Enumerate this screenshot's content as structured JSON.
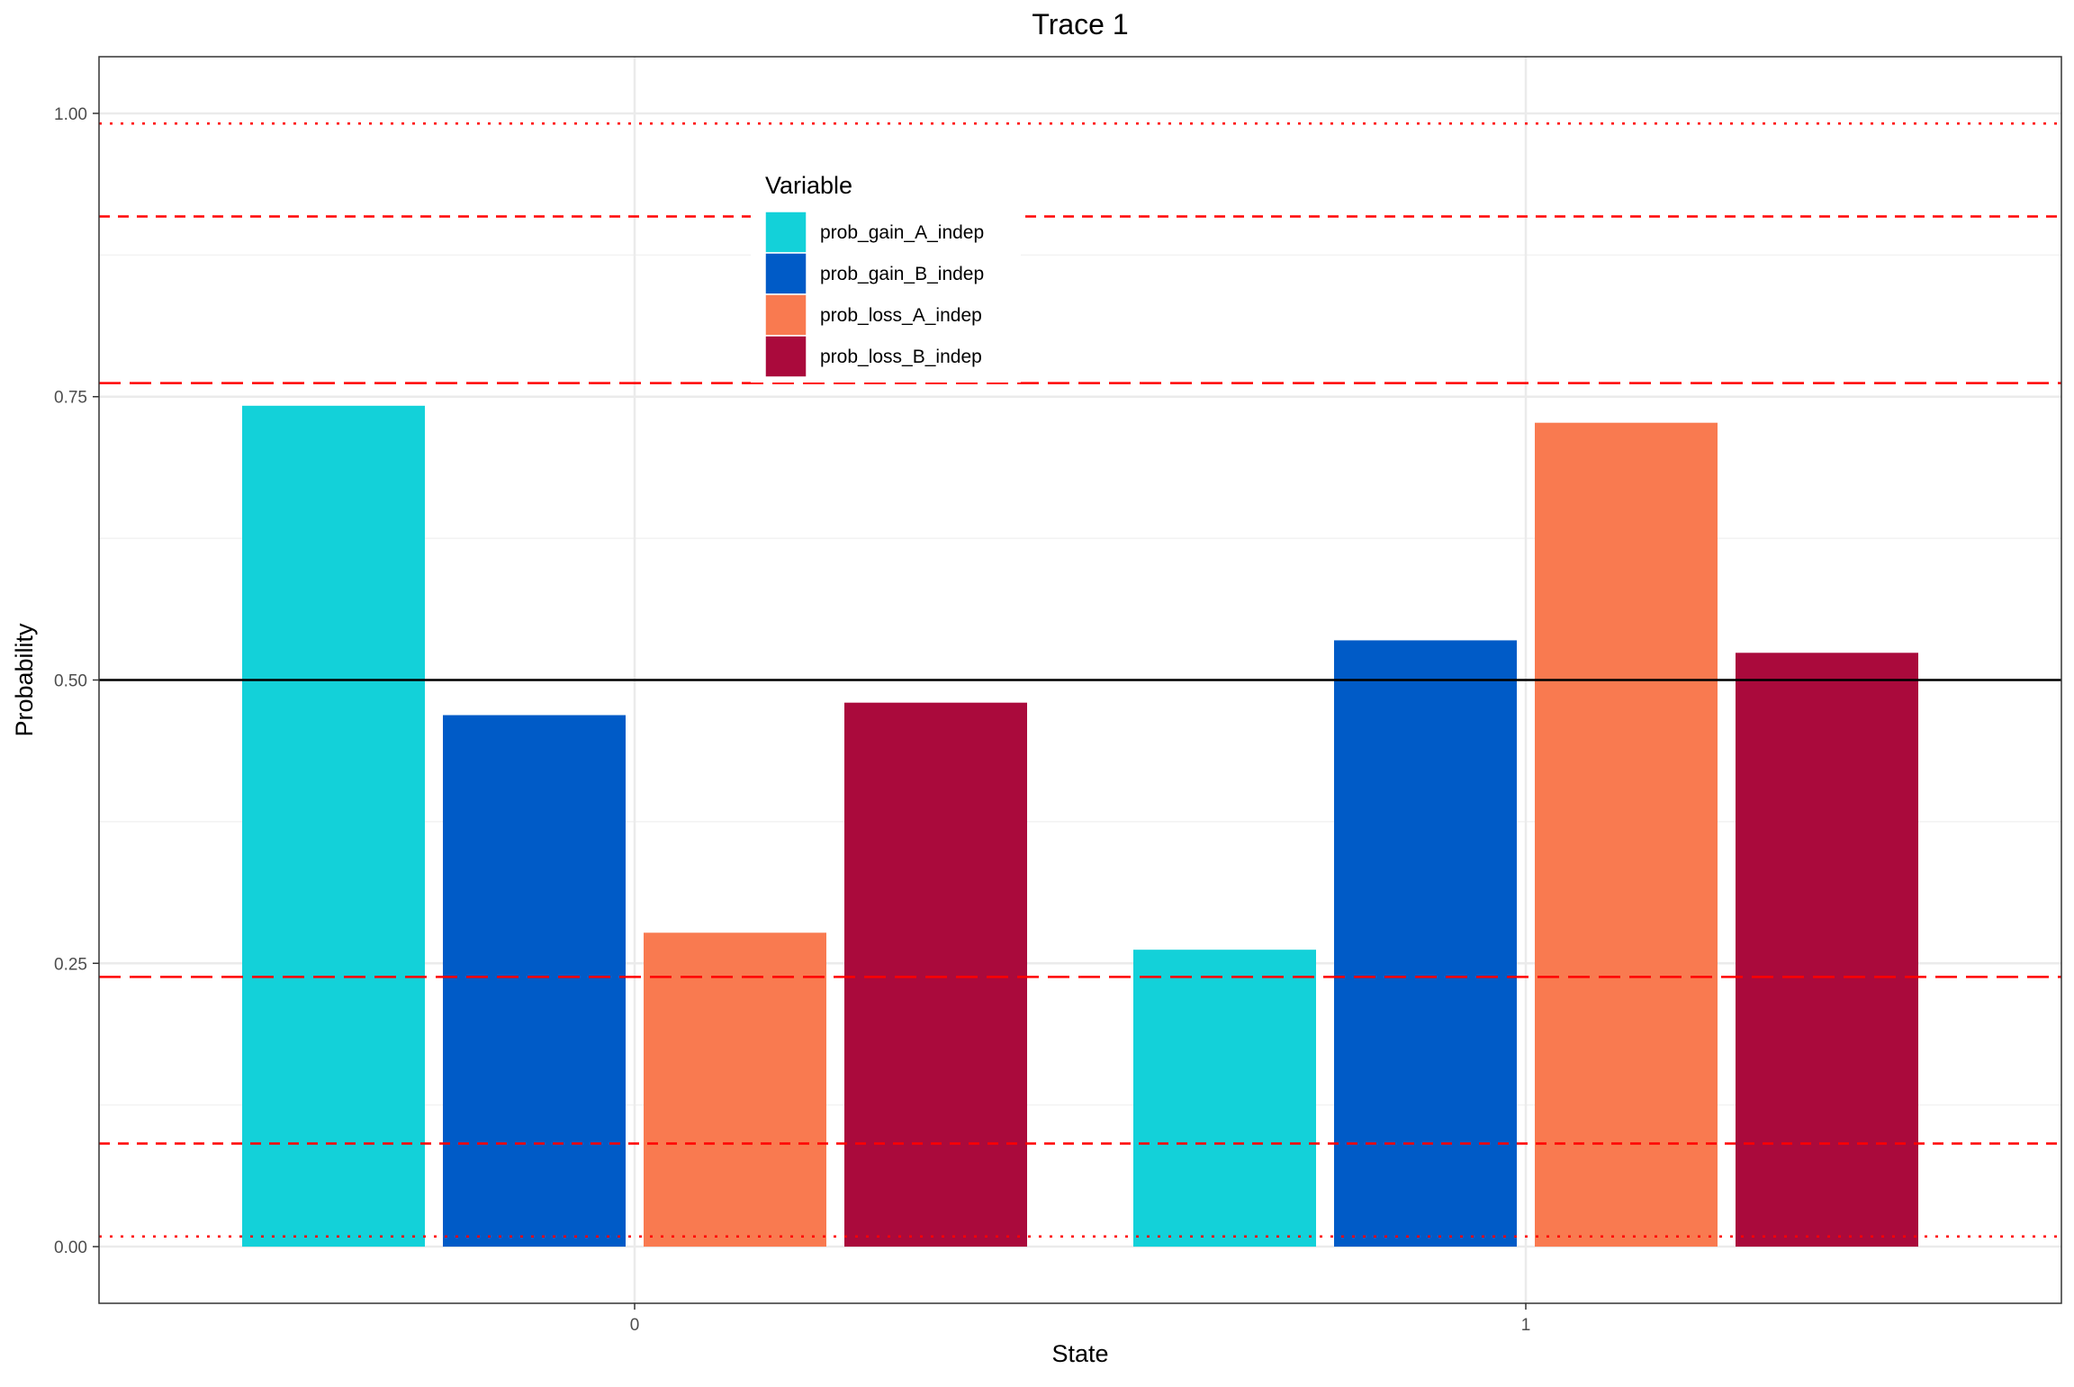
{
  "chart_data": {
    "type": "bar",
    "title": "Trace 1",
    "xlabel": "State",
    "ylabel": "Probability",
    "categories": [
      "0",
      "1"
    ],
    "ylim": [
      -0.05,
      1.05
    ],
    "yticks": [
      0.0,
      0.25,
      0.5,
      0.75,
      1.0
    ],
    "ytick_labels": [
      "0.00",
      "0.25",
      "0.50",
      "0.75",
      "1.00"
    ],
    "grid": true,
    "legend": {
      "title": "Variable",
      "position": "top-center-inside"
    },
    "series": [
      {
        "name": "prob_gain_A_indep",
        "color": "#13D1D9",
        "values": [
          0.742,
          0.262
        ]
      },
      {
        "name": "prob_gain_B_indep",
        "color": "#005BC7",
        "values": [
          0.469,
          0.535
        ]
      },
      {
        "name": "prob_loss_A_indep",
        "color": "#F97A50",
        "values": [
          0.277,
          0.727
        ]
      },
      {
        "name": "prob_loss_B_indep",
        "color": "#AA0A3C",
        "values": [
          0.48,
          0.524
        ]
      }
    ],
    "reference_lines": [
      {
        "y": 0.5,
        "color": "#000000",
        "style": "solid"
      },
      {
        "y": 0.991,
        "color": "#FF0000",
        "style": "dotted"
      },
      {
        "y": 0.009,
        "color": "#FF0000",
        "style": "dotted"
      },
      {
        "y": 0.909,
        "color": "#FF0000",
        "style": "dashed"
      },
      {
        "y": 0.091,
        "color": "#FF0000",
        "style": "dashed"
      },
      {
        "y": 0.762,
        "color": "#FF0000",
        "style": "longdash"
      },
      {
        "y": 0.238,
        "color": "#FF0000",
        "style": "longdash"
      }
    ]
  }
}
